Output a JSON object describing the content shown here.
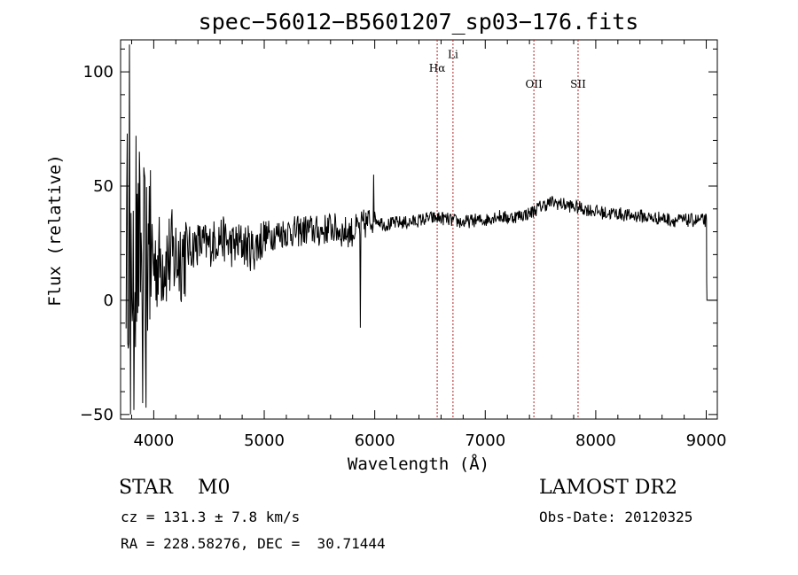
{
  "chart_data": {
    "type": "line",
    "title": "spec−56012−B5601207_sp03−176.fits",
    "xlabel": "Wavelength (Å)",
    "ylabel": "Flux (relative)",
    "xlim": [
      3700,
      9100
    ],
    "ylim": [
      -52,
      114
    ],
    "x_ticks": [
      4000,
      5000,
      6000,
      7000,
      8000,
      9000
    ],
    "y_ticks": [
      -50,
      0,
      50,
      100
    ],
    "x_tick_labels": [
      "4000",
      "5000",
      "6000",
      "7000",
      "8000",
      "9000"
    ],
    "y_tick_labels": [
      "−50",
      "0",
      "50",
      "100"
    ],
    "grid": false,
    "series": [
      {
        "anchors": [
          [
            3750,
            20
          ],
          [
            3800,
            15
          ],
          [
            3900,
            20
          ],
          [
            4000,
            16
          ],
          [
            4100,
            18
          ],
          [
            4200,
            19
          ],
          [
            4300,
            22
          ],
          [
            4400,
            25
          ],
          [
            4500,
            24
          ],
          [
            4600,
            28
          ],
          [
            4700,
            24
          ],
          [
            4800,
            25
          ],
          [
            4900,
            22
          ],
          [
            5000,
            28
          ],
          [
            5100,
            29
          ],
          [
            5200,
            30
          ],
          [
            5300,
            30
          ],
          [
            5400,
            31
          ],
          [
            5500,
            30
          ],
          [
            5600,
            32
          ],
          [
            5700,
            30
          ],
          [
            5800,
            30
          ],
          [
            5900,
            33
          ],
          [
            6000,
            36
          ],
          [
            6100,
            33
          ],
          [
            6200,
            34
          ],
          [
            6300,
            34
          ],
          [
            6400,
            35
          ],
          [
            6500,
            36
          ],
          [
            6600,
            36
          ],
          [
            6700,
            35
          ],
          [
            6800,
            34
          ],
          [
            6900,
            35
          ],
          [
            7000,
            35
          ],
          [
            7100,
            37
          ],
          [
            7200,
            36
          ],
          [
            7300,
            37
          ],
          [
            7400,
            38
          ],
          [
            7500,
            41
          ],
          [
            7600,
            43
          ],
          [
            7700,
            42
          ],
          [
            7800,
            41
          ],
          [
            7900,
            40
          ],
          [
            8000,
            39
          ],
          [
            8100,
            38
          ],
          [
            8200,
            38
          ],
          [
            8300,
            37
          ],
          [
            8400,
            37
          ],
          [
            8500,
            36
          ],
          [
            8600,
            36
          ],
          [
            8700,
            35
          ],
          [
            8800,
            35
          ],
          [
            8900,
            35
          ],
          [
            9000,
            35
          ]
        ],
        "spikes": [
          [
            3780,
            112
          ],
          [
            3760,
            73
          ],
          [
            3790,
            -50
          ],
          [
            3820,
            -48
          ],
          [
            3840,
            72
          ],
          [
            3870,
            65
          ],
          [
            3900,
            -45
          ],
          [
            3930,
            -47
          ],
          [
            3960,
            50
          ],
          [
            5870,
            -12
          ],
          [
            5990,
            55
          ]
        ]
      }
    ],
    "annotations": [
      {
        "label": "Hα",
        "x": 6565,
        "label_y": 100
      },
      {
        "label": "Li",
        "x": 6708,
        "label_y": 106
      },
      {
        "label": "OII",
        "x": 7440,
        "label_y": 93
      },
      {
        "label": "SII",
        "x": 7840,
        "label_y": 93
      }
    ],
    "annotation_color": "#b22222"
  },
  "info": {
    "class_line": "STAR    M0",
    "cz_line": "cz = 131.3 ± 7.8 km/s",
    "radec_line": "RA = 228.58276, DEC =  30.71444",
    "survey": "LAMOST DR2",
    "obs_date": "Obs-Date: 20120325"
  }
}
